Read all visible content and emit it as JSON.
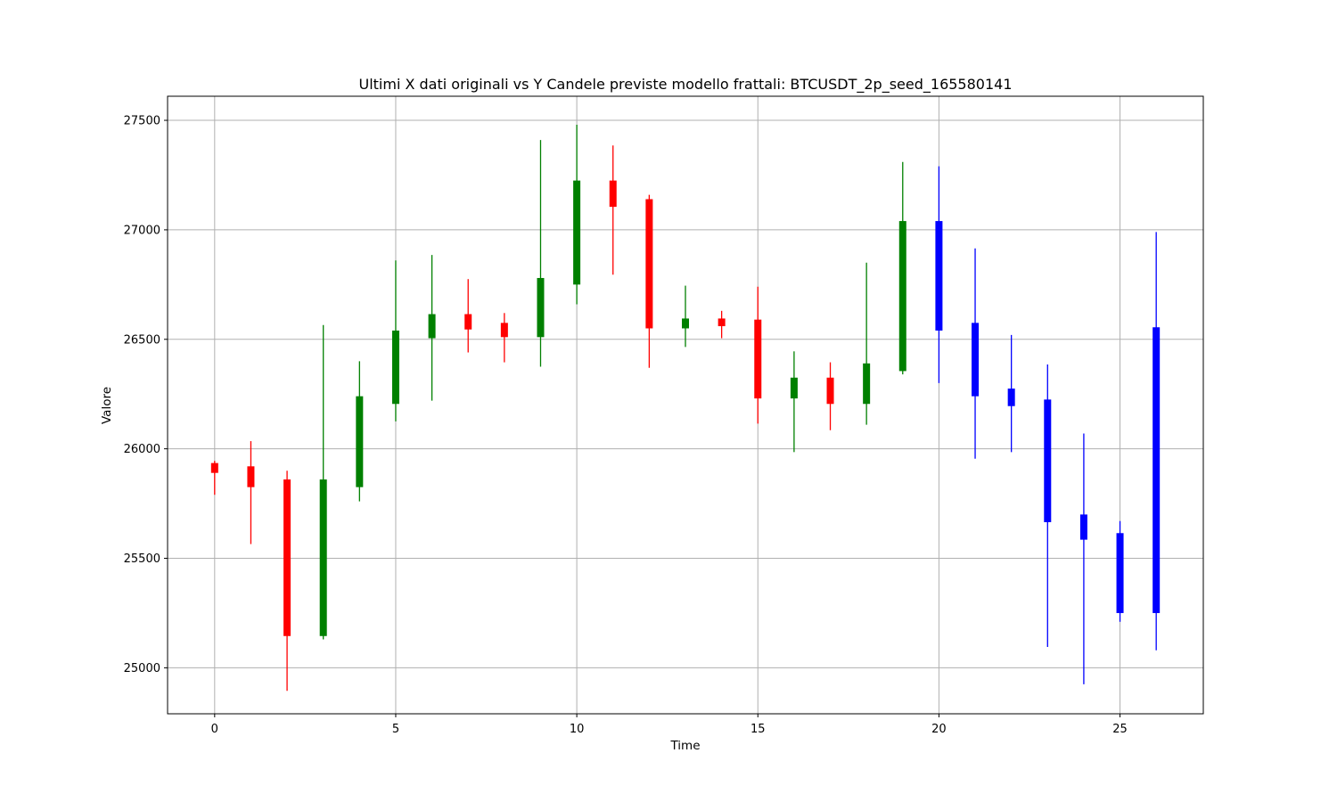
{
  "chart_data": {
    "type": "candlestick",
    "title": "Ultimi X dati originali vs Y Candele previste modello frattali: BTCUSDT_2p_seed_165580141",
    "xlabel": "Time",
    "ylabel": "Valore",
    "xlim": [
      -1.3,
      27.3
    ],
    "ylim": [
      24790,
      27610
    ],
    "x_ticks": [
      0,
      5,
      10,
      15,
      20,
      25
    ],
    "y_ticks": [
      25000,
      25500,
      26000,
      26500,
      27000,
      27500
    ],
    "grid": true,
    "colors": {
      "up": "#008000",
      "down": "#ff0000",
      "predicted": "#0000ff"
    },
    "candles": [
      {
        "t": 0,
        "open": 25935,
        "high": 25945,
        "low": 25790,
        "close": 25890,
        "kind": "original"
      },
      {
        "t": 1,
        "open": 25920,
        "high": 26035,
        "low": 25565,
        "close": 25825,
        "kind": "original"
      },
      {
        "t": 2,
        "open": 25860,
        "high": 25900,
        "low": 24895,
        "close": 25145,
        "kind": "original"
      },
      {
        "t": 3,
        "open": 25145,
        "high": 26565,
        "low": 25130,
        "close": 25860,
        "kind": "original"
      },
      {
        "t": 4,
        "open": 25825,
        "high": 26400,
        "low": 25760,
        "close": 26240,
        "kind": "original"
      },
      {
        "t": 5,
        "open": 26205,
        "high": 26860,
        "low": 26125,
        "close": 26540,
        "kind": "original"
      },
      {
        "t": 6,
        "open": 26505,
        "high": 26885,
        "low": 26220,
        "close": 26615,
        "kind": "original"
      },
      {
        "t": 7,
        "open": 26615,
        "high": 26775,
        "low": 26440,
        "close": 26545,
        "kind": "original"
      },
      {
        "t": 8,
        "open": 26575,
        "high": 26620,
        "low": 26395,
        "close": 26510,
        "kind": "original"
      },
      {
        "t": 9,
        "open": 26510,
        "high": 27410,
        "low": 26375,
        "close": 26780,
        "kind": "original"
      },
      {
        "t": 10,
        "open": 26750,
        "high": 27480,
        "low": 26660,
        "close": 27225,
        "kind": "original"
      },
      {
        "t": 11,
        "open": 27225,
        "high": 27385,
        "low": 26795,
        "close": 27105,
        "kind": "original"
      },
      {
        "t": 12,
        "open": 27140,
        "high": 27160,
        "low": 26370,
        "close": 26550,
        "kind": "original"
      },
      {
        "t": 13,
        "open": 26550,
        "high": 26745,
        "low": 26465,
        "close": 26595,
        "kind": "original"
      },
      {
        "t": 14,
        "open": 26595,
        "high": 26630,
        "low": 26505,
        "close": 26560,
        "kind": "original"
      },
      {
        "t": 15,
        "open": 26590,
        "high": 26740,
        "low": 26115,
        "close": 26230,
        "kind": "original"
      },
      {
        "t": 16,
        "open": 26230,
        "high": 26445,
        "low": 25985,
        "close": 26325,
        "kind": "original"
      },
      {
        "t": 17,
        "open": 26325,
        "high": 26395,
        "low": 26085,
        "close": 26205,
        "kind": "original"
      },
      {
        "t": 18,
        "open": 26205,
        "high": 26850,
        "low": 26110,
        "close": 26390,
        "kind": "original"
      },
      {
        "t": 19,
        "open": 26355,
        "high": 27310,
        "low": 26340,
        "close": 27040,
        "kind": "original"
      },
      {
        "t": 20,
        "open": 27040,
        "high": 27290,
        "low": 26300,
        "close": 26540,
        "kind": "predicted"
      },
      {
        "t": 21,
        "open": 26575,
        "high": 26915,
        "low": 25955,
        "close": 26240,
        "kind": "predicted"
      },
      {
        "t": 22,
        "open": 26275,
        "high": 26520,
        "low": 25985,
        "close": 26195,
        "kind": "predicted"
      },
      {
        "t": 23,
        "open": 26225,
        "high": 26385,
        "low": 25095,
        "close": 25665,
        "kind": "predicted"
      },
      {
        "t": 24,
        "open": 25700,
        "high": 26070,
        "low": 24925,
        "close": 25585,
        "kind": "predicted"
      },
      {
        "t": 25,
        "open": 25615,
        "high": 25670,
        "low": 25210,
        "close": 25250,
        "kind": "predicted"
      },
      {
        "t": 26,
        "open": 25250,
        "high": 26990,
        "low": 25080,
        "close": 26555,
        "kind": "predicted"
      }
    ]
  }
}
